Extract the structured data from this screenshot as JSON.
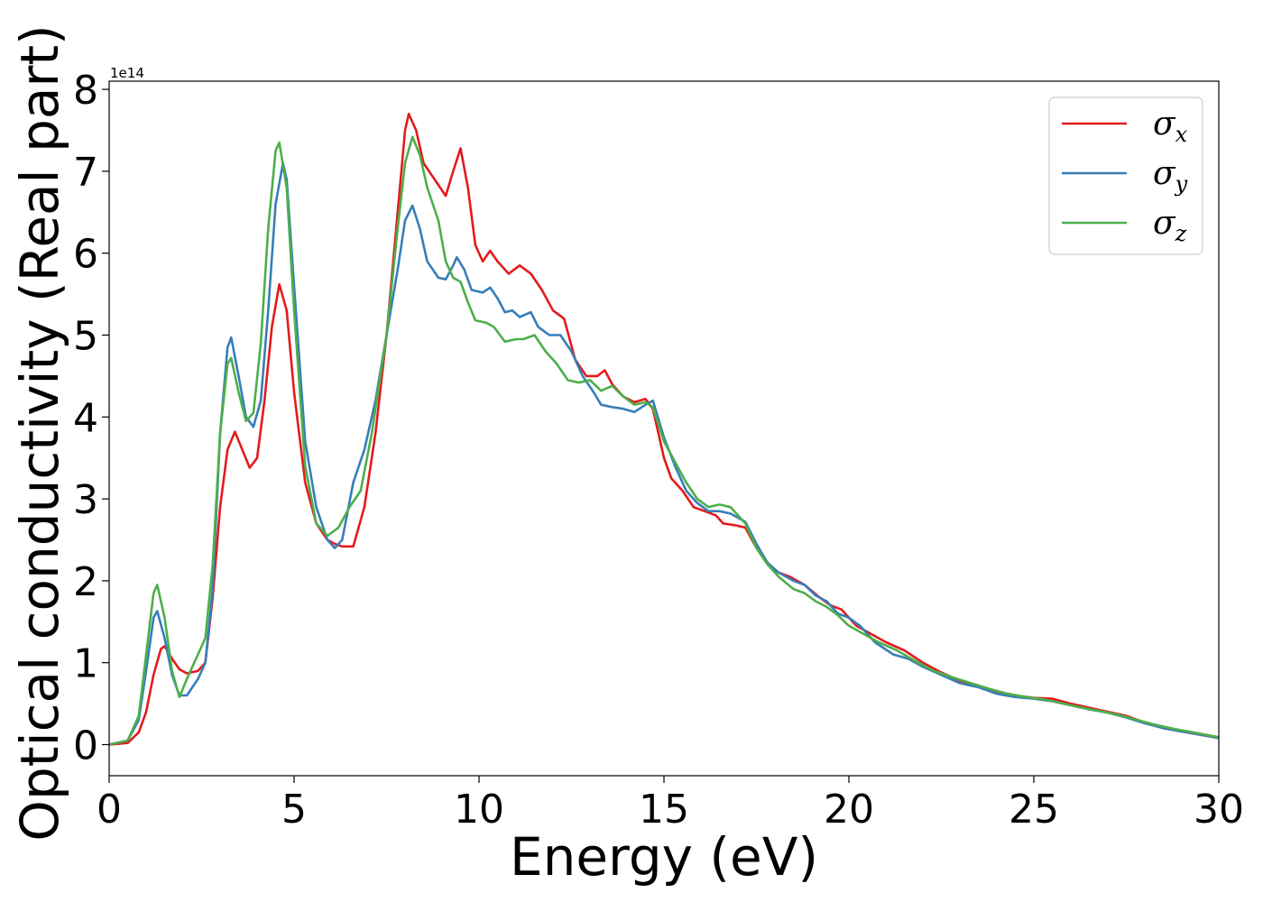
{
  "chart_data": {
    "type": "line",
    "title": "",
    "xlabel": "Energy (eV)",
    "ylabel": "Optical conductivity (Real part)",
    "y_offset_label": "1e14",
    "xlim": [
      0,
      30
    ],
    "ylim": [
      -0.38,
      8.1
    ],
    "x_ticks": [
      0,
      5,
      10,
      15,
      20,
      25,
      30
    ],
    "y_ticks": [
      0,
      1,
      2,
      3,
      4,
      5,
      6,
      7,
      8
    ],
    "grid": false,
    "legend_position": "top-right",
    "series": [
      {
        "name": "σx",
        "legend_base": "σ",
        "legend_sub": "x",
        "color": "#e41a1c",
        "points": [
          [
            0,
            0
          ],
          [
            0.5,
            0.02
          ],
          [
            0.8,
            0.15
          ],
          [
            1.0,
            0.4
          ],
          [
            1.2,
            0.85
          ],
          [
            1.4,
            1.17
          ],
          [
            1.5,
            1.2
          ],
          [
            1.7,
            1.05
          ],
          [
            1.9,
            0.92
          ],
          [
            2.1,
            0.87
          ],
          [
            2.4,
            0.9
          ],
          [
            2.6,
            1.0
          ],
          [
            2.8,
            1.8
          ],
          [
            3.0,
            2.9
          ],
          [
            3.2,
            3.6
          ],
          [
            3.4,
            3.82
          ],
          [
            3.6,
            3.6
          ],
          [
            3.8,
            3.38
          ],
          [
            4.0,
            3.5
          ],
          [
            4.2,
            4.2
          ],
          [
            4.4,
            5.1
          ],
          [
            4.6,
            5.62
          ],
          [
            4.8,
            5.3
          ],
          [
            5.0,
            4.3
          ],
          [
            5.3,
            3.2
          ],
          [
            5.6,
            2.7
          ],
          [
            5.9,
            2.5
          ],
          [
            6.1,
            2.45
          ],
          [
            6.3,
            2.42
          ],
          [
            6.6,
            2.42
          ],
          [
            6.9,
            2.9
          ],
          [
            7.2,
            3.8
          ],
          [
            7.5,
            5.0
          ],
          [
            7.8,
            6.5
          ],
          [
            8.0,
            7.5
          ],
          [
            8.1,
            7.7
          ],
          [
            8.3,
            7.5
          ],
          [
            8.5,
            7.1
          ],
          [
            8.8,
            6.9
          ],
          [
            9.1,
            6.7
          ],
          [
            9.3,
            7.0
          ],
          [
            9.5,
            7.28
          ],
          [
            9.7,
            6.8
          ],
          [
            9.9,
            6.1
          ],
          [
            10.1,
            5.9
          ],
          [
            10.3,
            6.03
          ],
          [
            10.5,
            5.9
          ],
          [
            10.8,
            5.75
          ],
          [
            11.1,
            5.85
          ],
          [
            11.4,
            5.75
          ],
          [
            11.7,
            5.55
          ],
          [
            12.0,
            5.3
          ],
          [
            12.3,
            5.2
          ],
          [
            12.6,
            4.7
          ],
          [
            12.9,
            4.5
          ],
          [
            13.2,
            4.5
          ],
          [
            13.4,
            4.57
          ],
          [
            13.6,
            4.4
          ],
          [
            13.9,
            4.25
          ],
          [
            14.2,
            4.18
          ],
          [
            14.5,
            4.22
          ],
          [
            14.7,
            4.1
          ],
          [
            15.0,
            3.5
          ],
          [
            15.2,
            3.25
          ],
          [
            15.5,
            3.1
          ],
          [
            15.8,
            2.9
          ],
          [
            16.1,
            2.85
          ],
          [
            16.4,
            2.8
          ],
          [
            16.6,
            2.7
          ],
          [
            16.9,
            2.68
          ],
          [
            17.2,
            2.65
          ],
          [
            17.5,
            2.4
          ],
          [
            17.8,
            2.2
          ],
          [
            18.1,
            2.1
          ],
          [
            18.4,
            2.05
          ],
          [
            18.8,
            1.95
          ],
          [
            19.2,
            1.8
          ],
          [
            19.5,
            1.7
          ],
          [
            19.8,
            1.65
          ],
          [
            20.2,
            1.45
          ],
          [
            20.6,
            1.35
          ],
          [
            21.0,
            1.25
          ],
          [
            21.5,
            1.15
          ],
          [
            22.0,
            1.0
          ],
          [
            22.5,
            0.88
          ],
          [
            23.0,
            0.78
          ],
          [
            23.5,
            0.72
          ],
          [
            24.0,
            0.65
          ],
          [
            24.5,
            0.6
          ],
          [
            25.0,
            0.57
          ],
          [
            25.5,
            0.56
          ],
          [
            26.0,
            0.5
          ],
          [
            26.5,
            0.45
          ],
          [
            27.0,
            0.4
          ],
          [
            27.5,
            0.35
          ],
          [
            28.0,
            0.27
          ],
          [
            28.5,
            0.2
          ],
          [
            29.0,
            0.16
          ],
          [
            29.5,
            0.12
          ],
          [
            30.0,
            0.08
          ]
        ]
      },
      {
        "name": "σy",
        "legend_base": "σ",
        "legend_sub": "y",
        "color": "#377eb8",
        "points": [
          [
            0,
            0
          ],
          [
            0.5,
            0.05
          ],
          [
            0.8,
            0.3
          ],
          [
            1.0,
            0.9
          ],
          [
            1.2,
            1.55
          ],
          [
            1.3,
            1.63
          ],
          [
            1.5,
            1.3
          ],
          [
            1.7,
            0.85
          ],
          [
            1.9,
            0.6
          ],
          [
            2.1,
            0.6
          ],
          [
            2.4,
            0.8
          ],
          [
            2.6,
            1.0
          ],
          [
            2.8,
            1.9
          ],
          [
            3.0,
            3.8
          ],
          [
            3.2,
            4.85
          ],
          [
            3.3,
            4.97
          ],
          [
            3.5,
            4.5
          ],
          [
            3.7,
            4.0
          ],
          [
            3.9,
            3.88
          ],
          [
            4.1,
            4.2
          ],
          [
            4.3,
            5.3
          ],
          [
            4.5,
            6.6
          ],
          [
            4.7,
            7.1
          ],
          [
            4.8,
            6.9
          ],
          [
            5.0,
            5.6
          ],
          [
            5.3,
            3.7
          ],
          [
            5.6,
            2.9
          ],
          [
            5.9,
            2.5
          ],
          [
            6.1,
            2.4
          ],
          [
            6.3,
            2.5
          ],
          [
            6.6,
            3.2
          ],
          [
            6.9,
            3.6
          ],
          [
            7.2,
            4.2
          ],
          [
            7.5,
            5.0
          ],
          [
            7.8,
            5.8
          ],
          [
            8.0,
            6.4
          ],
          [
            8.2,
            6.58
          ],
          [
            8.4,
            6.3
          ],
          [
            8.6,
            5.9
          ],
          [
            8.9,
            5.7
          ],
          [
            9.1,
            5.68
          ],
          [
            9.3,
            5.85
          ],
          [
            9.4,
            5.95
          ],
          [
            9.6,
            5.8
          ],
          [
            9.8,
            5.55
          ],
          [
            10.1,
            5.52
          ],
          [
            10.3,
            5.58
          ],
          [
            10.5,
            5.45
          ],
          [
            10.7,
            5.28
          ],
          [
            10.9,
            5.3
          ],
          [
            11.1,
            5.22
          ],
          [
            11.4,
            5.28
          ],
          [
            11.6,
            5.1
          ],
          [
            11.9,
            5.0
          ],
          [
            12.2,
            5.0
          ],
          [
            12.5,
            4.8
          ],
          [
            12.8,
            4.5
          ],
          [
            13.1,
            4.3
          ],
          [
            13.3,
            4.15
          ],
          [
            13.6,
            4.12
          ],
          [
            13.9,
            4.1
          ],
          [
            14.2,
            4.06
          ],
          [
            14.5,
            4.15
          ],
          [
            14.7,
            4.2
          ],
          [
            15.0,
            3.75
          ],
          [
            15.3,
            3.4
          ],
          [
            15.6,
            3.1
          ],
          [
            15.9,
            2.95
          ],
          [
            16.2,
            2.85
          ],
          [
            16.5,
            2.85
          ],
          [
            16.8,
            2.82
          ],
          [
            17.2,
            2.72
          ],
          [
            17.5,
            2.45
          ],
          [
            17.8,
            2.22
          ],
          [
            18.1,
            2.1
          ],
          [
            18.5,
            2.0
          ],
          [
            18.8,
            1.95
          ],
          [
            19.1,
            1.82
          ],
          [
            19.4,
            1.75
          ],
          [
            19.7,
            1.6
          ],
          [
            20.0,
            1.55
          ],
          [
            20.3,
            1.45
          ],
          [
            20.7,
            1.25
          ],
          [
            21.2,
            1.1
          ],
          [
            21.6,
            1.05
          ],
          [
            22.0,
            0.95
          ],
          [
            22.5,
            0.85
          ],
          [
            23.0,
            0.75
          ],
          [
            23.5,
            0.7
          ],
          [
            24.0,
            0.62
          ],
          [
            24.5,
            0.58
          ],
          [
            25.0,
            0.56
          ],
          [
            25.5,
            0.53
          ],
          [
            26.0,
            0.48
          ],
          [
            26.5,
            0.43
          ],
          [
            27.0,
            0.39
          ],
          [
            27.5,
            0.33
          ],
          [
            28.0,
            0.26
          ],
          [
            28.5,
            0.2
          ],
          [
            29.0,
            0.16
          ],
          [
            29.5,
            0.12
          ],
          [
            30.0,
            0.08
          ]
        ]
      },
      {
        "name": "σz",
        "legend_base": "σ",
        "legend_sub": "z",
        "color": "#4daf4a",
        "points": [
          [
            0,
            0
          ],
          [
            0.5,
            0.05
          ],
          [
            0.8,
            0.35
          ],
          [
            1.0,
            1.1
          ],
          [
            1.2,
            1.85
          ],
          [
            1.3,
            1.95
          ],
          [
            1.5,
            1.55
          ],
          [
            1.7,
            0.9
          ],
          [
            1.9,
            0.58
          ],
          [
            2.1,
            0.8
          ],
          [
            2.4,
            1.1
          ],
          [
            2.6,
            1.3
          ],
          [
            2.8,
            2.2
          ],
          [
            3.0,
            3.8
          ],
          [
            3.2,
            4.65
          ],
          [
            3.3,
            4.72
          ],
          [
            3.5,
            4.3
          ],
          [
            3.7,
            3.95
          ],
          [
            3.9,
            4.05
          ],
          [
            4.1,
            4.9
          ],
          [
            4.3,
            6.3
          ],
          [
            4.5,
            7.25
          ],
          [
            4.6,
            7.35
          ],
          [
            4.8,
            6.8
          ],
          [
            5.0,
            5.3
          ],
          [
            5.3,
            3.4
          ],
          [
            5.6,
            2.7
          ],
          [
            5.9,
            2.55
          ],
          [
            6.2,
            2.65
          ],
          [
            6.5,
            2.9
          ],
          [
            6.8,
            3.1
          ],
          [
            7.1,
            3.8
          ],
          [
            7.5,
            5.0
          ],
          [
            7.8,
            6.3
          ],
          [
            8.0,
            7.1
          ],
          [
            8.2,
            7.42
          ],
          [
            8.4,
            7.2
          ],
          [
            8.6,
            6.8
          ],
          [
            8.9,
            6.4
          ],
          [
            9.1,
            5.9
          ],
          [
            9.3,
            5.7
          ],
          [
            9.5,
            5.65
          ],
          [
            9.7,
            5.4
          ],
          [
            9.9,
            5.18
          ],
          [
            10.2,
            5.15
          ],
          [
            10.4,
            5.1
          ],
          [
            10.7,
            4.92
          ],
          [
            11.0,
            4.95
          ],
          [
            11.2,
            4.95
          ],
          [
            11.5,
            5.0
          ],
          [
            11.8,
            4.8
          ],
          [
            12.1,
            4.65
          ],
          [
            12.4,
            4.45
          ],
          [
            12.7,
            4.42
          ],
          [
            13.0,
            4.45
          ],
          [
            13.3,
            4.32
          ],
          [
            13.6,
            4.38
          ],
          [
            13.9,
            4.25
          ],
          [
            14.2,
            4.15
          ],
          [
            14.5,
            4.18
          ],
          [
            14.7,
            4.12
          ],
          [
            15.0,
            3.7
          ],
          [
            15.3,
            3.45
          ],
          [
            15.6,
            3.2
          ],
          [
            15.9,
            3.0
          ],
          [
            16.2,
            2.9
          ],
          [
            16.5,
            2.93
          ],
          [
            16.8,
            2.9
          ],
          [
            17.2,
            2.7
          ],
          [
            17.5,
            2.4
          ],
          [
            17.8,
            2.2
          ],
          [
            18.1,
            2.05
          ],
          [
            18.5,
            1.9
          ],
          [
            18.8,
            1.85
          ],
          [
            19.1,
            1.75
          ],
          [
            19.4,
            1.68
          ],
          [
            19.7,
            1.58
          ],
          [
            20.0,
            1.45
          ],
          [
            20.4,
            1.35
          ],
          [
            20.8,
            1.25
          ],
          [
            21.3,
            1.15
          ],
          [
            21.8,
            1.02
          ],
          [
            22.3,
            0.9
          ],
          [
            22.8,
            0.82
          ],
          [
            23.3,
            0.75
          ],
          [
            23.8,
            0.68
          ],
          [
            24.3,
            0.62
          ],
          [
            24.8,
            0.58
          ],
          [
            25.3,
            0.55
          ],
          [
            25.8,
            0.5
          ],
          [
            26.3,
            0.45
          ],
          [
            26.8,
            0.41
          ],
          [
            27.3,
            0.36
          ],
          [
            27.8,
            0.3
          ],
          [
            28.3,
            0.24
          ],
          [
            28.8,
            0.19
          ],
          [
            29.3,
            0.15
          ],
          [
            30.0,
            0.09
          ]
        ]
      }
    ]
  }
}
